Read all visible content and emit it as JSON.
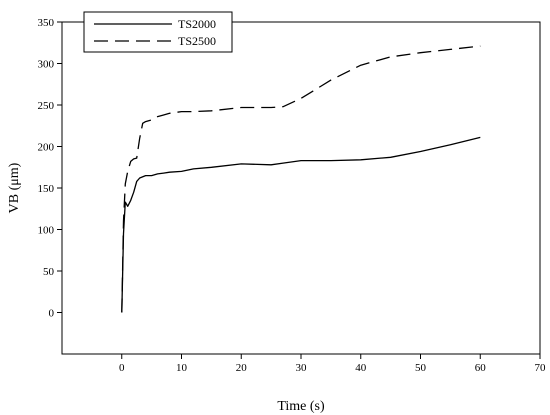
{
  "chart_data": {
    "type": "line",
    "title": "",
    "xlabel": "Time (s)",
    "ylabel": "VB (μm)",
    "xlim": [
      -10,
      70
    ],
    "ylim": [
      -50,
      350
    ],
    "xticks": [
      0,
      10,
      20,
      30,
      40,
      50,
      60,
      70
    ],
    "yticks": [
      0,
      50,
      100,
      150,
      200,
      250,
      300,
      350
    ],
    "grid": false,
    "legend": "top-left",
    "series": [
      {
        "name": "TS2000",
        "style": "solid",
        "color": "#000000",
        "x": [
          0,
          0.3,
          0.6,
          1,
          1.5,
          2,
          2.5,
          3,
          4,
          5,
          6,
          7,
          8,
          10,
          12,
          15,
          20,
          25,
          27,
          30,
          35,
          40,
          45,
          50,
          55,
          60
        ],
        "y": [
          0,
          95,
          133,
          128,
          135,
          145,
          158,
          162,
          165,
          165,
          167,
          168,
          169,
          170,
          173,
          175,
          179,
          178,
          180,
          183,
          183,
          184,
          187,
          194,
          202,
          211
        ]
      },
      {
        "name": "TS2500",
        "style": "dashed",
        "color": "#000000",
        "x": [
          0,
          0.3,
          0.6,
          1,
          1.5,
          2,
          2.5,
          3,
          3.5,
          4,
          5,
          6,
          7,
          8,
          10,
          12,
          15,
          20,
          25,
          27,
          30,
          35,
          40,
          45,
          50,
          55,
          60
        ],
        "y": [
          0,
          110,
          155,
          170,
          182,
          185,
          186,
          210,
          228,
          230,
          232,
          236,
          238,
          240,
          242,
          242,
          243,
          247,
          247,
          248,
          258,
          280,
          298,
          308,
          313,
          317,
          321
        ]
      }
    ]
  }
}
